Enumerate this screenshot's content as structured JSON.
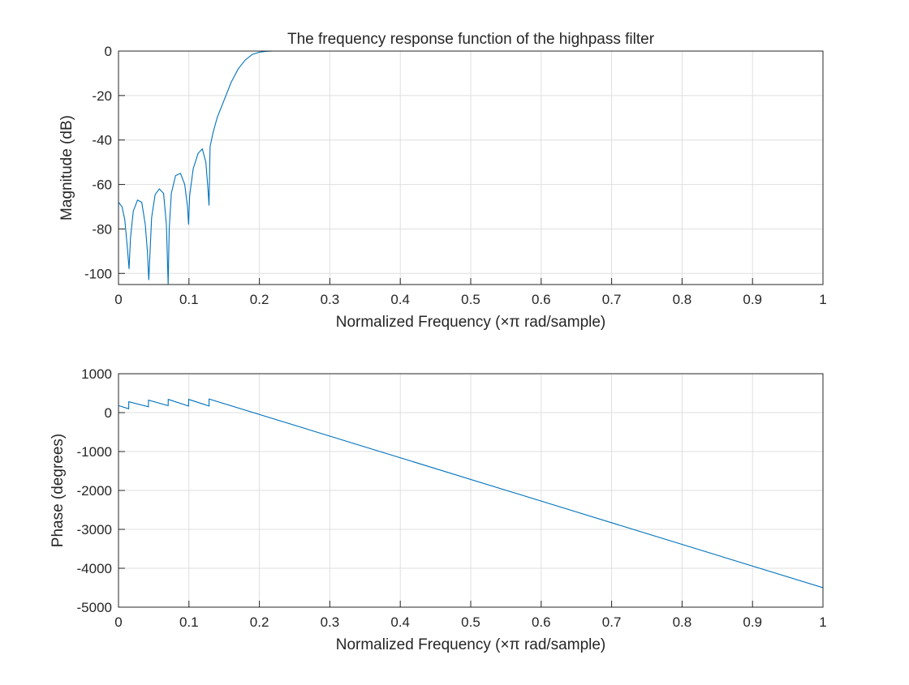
{
  "chart_data": [
    {
      "type": "line",
      "title": "The frequency response function of the highpass filter",
      "xlabel": "Normalized Frequency  (×π rad/sample)",
      "ylabel": "Magnitude (dB)",
      "xlim": [
        0,
        1
      ],
      "ylim": [
        -105,
        0
      ],
      "xticks": [
        "0",
        "0.1",
        "0.2",
        "0.3",
        "0.4",
        "0.5",
        "0.6",
        "0.7",
        "0.8",
        "0.9",
        "1"
      ],
      "yticks": [
        "0",
        "-20",
        "-40",
        "-60",
        "-80",
        "-100"
      ],
      "grid": true,
      "line_color": "#0072BD",
      "series": [
        {
          "x": [
            0,
            0.005,
            0.009,
            0.013,
            0.015,
            0.017,
            0.021,
            0.027,
            0.033,
            0.038,
            0.041,
            0.043,
            0.047,
            0.052,
            0.058,
            0.064,
            0.068,
            0.0705,
            0.072,
            0.075,
            0.081,
            0.088,
            0.094,
            0.098,
            0.0995,
            0.101,
            0.106,
            0.113,
            0.119,
            0.124,
            0.127,
            0.1285,
            0.13,
            0.134,
            0.14,
            0.15,
            0.16,
            0.17,
            0.18,
            0.19,
            0.2,
            0.21,
            0.22,
            0.23,
            0.24,
            0.3,
            0.4,
            0.5,
            0.6,
            0.7,
            0.8,
            0.9,
            1.0
          ],
          "y": [
            -68,
            -70,
            -76,
            -90,
            -98,
            -84,
            -72,
            -67,
            -68,
            -78,
            -90,
            -103,
            -75,
            -64.5,
            -62,
            -64,
            -78,
            -105,
            -80,
            -64,
            -56,
            -55,
            -60,
            -70,
            -78,
            -65,
            -53,
            -46,
            -44,
            -50,
            -62,
            -69.5,
            -43,
            -37,
            -30,
            -22,
            -14,
            -8,
            -4,
            -1.5,
            -0.5,
            -0.1,
            0,
            0,
            0,
            0,
            0,
            0,
            0,
            0,
            0,
            0,
            0
          ]
        }
      ]
    },
    {
      "type": "line",
      "title": "",
      "xlabel": "Normalized Frequency  (×π rad/sample)",
      "ylabel": "Phase (degrees)",
      "xlim": [
        0,
        1
      ],
      "ylim": [
        -5000,
        1000
      ],
      "xticks": [
        "0",
        "0.1",
        "0.2",
        "0.3",
        "0.4",
        "0.5",
        "0.6",
        "0.7",
        "0.8",
        "0.9",
        "1"
      ],
      "yticks": [
        "1000",
        "0",
        "-1000",
        "-2000",
        "-3000",
        "-4000",
        "-5000"
      ],
      "grid": true,
      "line_color": "#0072BD",
      "series": [
        {
          "x": [
            0,
            0.0145,
            0.0146,
            0.0425,
            0.0426,
            0.0705,
            0.0706,
            0.0995,
            0.0996,
            0.1285,
            0.1286,
            1.0
          ],
          "y": [
            180,
            100,
            280,
            150,
            320,
            180,
            340,
            170,
            340,
            170,
            350,
            -4500
          ]
        }
      ]
    }
  ]
}
